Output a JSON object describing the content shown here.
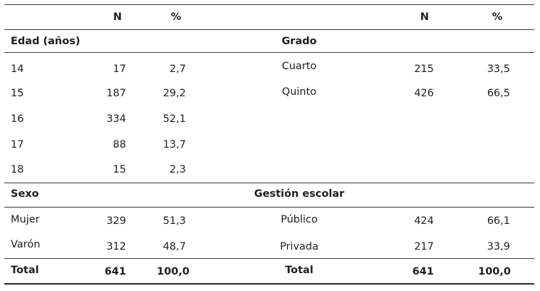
{
  "header": {
    "n_left": "N",
    "pct_left": "%",
    "n_right": "N",
    "pct_right": "%"
  },
  "left": {
    "section1": {
      "title": "Edad (años)",
      "rows": [
        {
          "label": "14",
          "n": "17",
          "pct": "2,7"
        },
        {
          "label": "15",
          "n": "187",
          "pct": "29,2"
        },
        {
          "label": "16",
          "n": "334",
          "pct": "52,1"
        },
        {
          "label": "17",
          "n": "88",
          "pct": "13,7"
        },
        {
          "label": "18",
          "n": "15",
          "pct": "2,3"
        }
      ]
    },
    "section2": {
      "title": "Sexo",
      "rows": [
        {
          "label": "Mujer",
          "n": "329",
          "pct": "51,3"
        },
        {
          "label": "Varón",
          "n": "312",
          "pct": "48,7"
        }
      ]
    },
    "total": {
      "label": "Total",
      "n": "641",
      "pct": "100,0"
    }
  },
  "right": {
    "section1": {
      "title": "Grado",
      "rows": [
        {
          "label": "Cuarto",
          "n": "215",
          "pct": "33,5"
        },
        {
          "label": "Quinto",
          "n": "426",
          "pct": "66,5"
        }
      ]
    },
    "section2": {
      "title": "Gestión escolar",
      "rows": [
        {
          "label": "Público",
          "n": "424",
          "pct": "66,1"
        },
        {
          "label": "Privada",
          "n": "217",
          "pct": "33,9"
        }
      ]
    },
    "total": {
      "label": "Total",
      "n": "641",
      "pct": "100,0"
    }
  }
}
